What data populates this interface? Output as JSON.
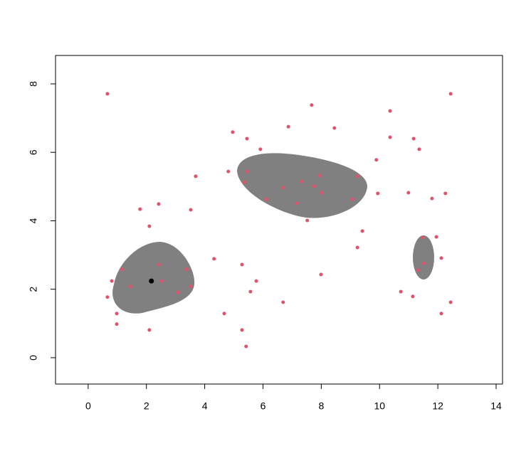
{
  "chart_data": {
    "type": "scatter",
    "xlim": [
      -1.12,
      14.22
    ],
    "ylim": [
      -0.77,
      8.83
    ],
    "xticks": [
      0,
      2,
      4,
      6,
      8,
      10,
      12,
      14
    ],
    "yticks": [
      0,
      2,
      4,
      6,
      8
    ],
    "series": [
      {
        "color": "#DF536B",
        "x": [
          0.66,
          7.67,
          10.36,
          12.44,
          6.87,
          8.45,
          4.96,
          5.45,
          10.36,
          11.17,
          11.36,
          5.91,
          9.89,
          4.81,
          5.45,
          3.69,
          5.35,
          7.94,
          9.24,
          7.31,
          7.74,
          6.69,
          8.01,
          9.94,
          10.99,
          12.26,
          6.11,
          9.06,
          11.8,
          7.16,
          1.78,
          2.42,
          3.52,
          7.52,
          2.1,
          9.41,
          11.48,
          11.95,
          9.24,
          4.32,
          12.12,
          2.42,
          5.28,
          11.51,
          1.15,
          3.37,
          11.31,
          0.81,
          2.52,
          5.77,
          7.99,
          1.44,
          3.52,
          3.08,
          5.57,
          10.73,
          0.66,
          11.14,
          6.69,
          12.44,
          0.98,
          4.67,
          12.12,
          0.98,
          2.1,
          5.28,
          5.42
        ],
        "values": [
          7.71,
          7.38,
          7.21,
          7.71,
          6.75,
          6.71,
          6.59,
          6.4,
          6.44,
          6.4,
          6.09,
          6.09,
          5.78,
          5.44,
          5.44,
          5.3,
          5.13,
          5.32,
          5.3,
          5.15,
          5.01,
          4.97,
          4.82,
          4.8,
          4.82,
          4.8,
          4.63,
          4.63,
          4.65,
          4.51,
          4.34,
          4.49,
          4.32,
          4.01,
          3.84,
          3.7,
          3.51,
          3.53,
          3.22,
          2.89,
          2.91,
          2.72,
          2.72,
          2.76,
          2.58,
          2.58,
          2.56,
          2.24,
          2.24,
          2.24,
          2.43,
          2.08,
          2.08,
          1.91,
          1.93,
          1.93,
          1.77,
          1.79,
          1.62,
          1.62,
          1.29,
          1.29,
          1.29,
          0.98,
          0.81,
          0.81,
          0.33
        ]
      },
      {
        "color": "#000000",
        "x": [
          2.17
        ],
        "values": [
          2.24
        ]
      }
    ]
  }
}
